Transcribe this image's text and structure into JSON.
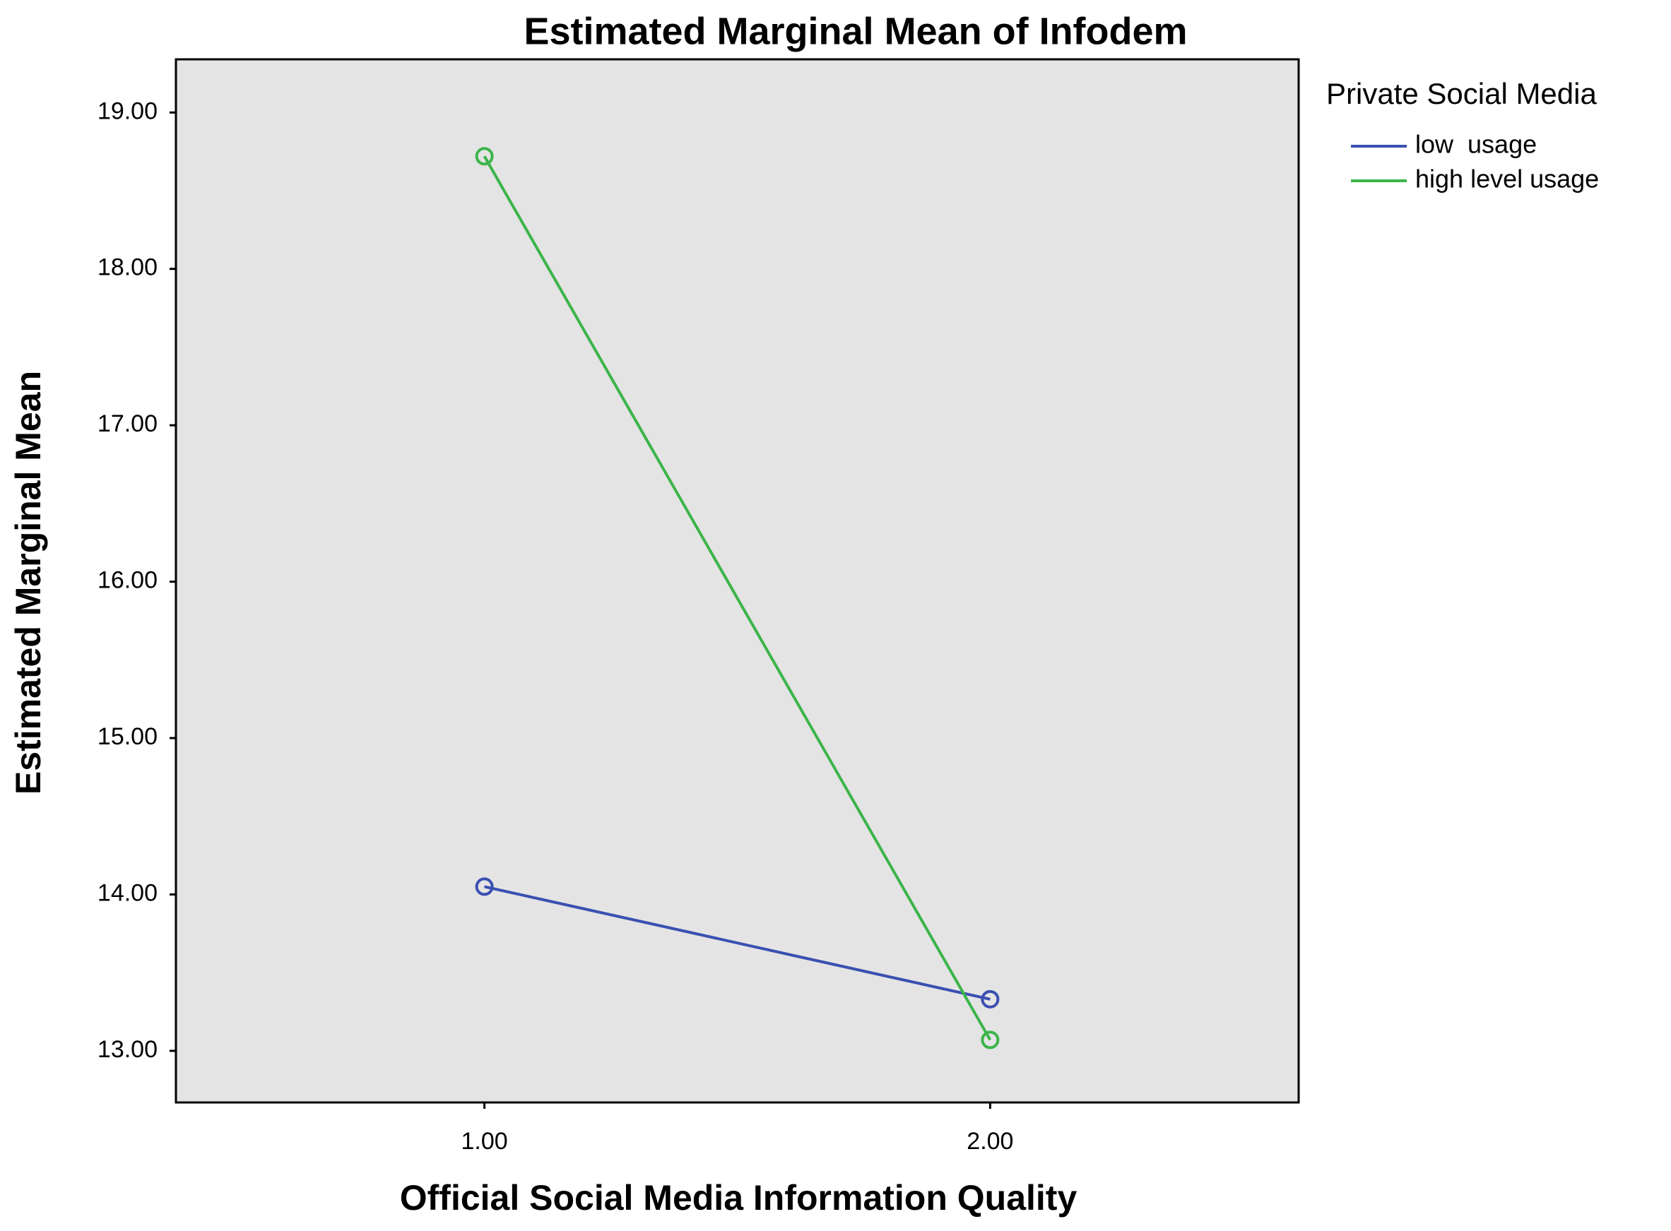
{
  "chart_data": {
    "type": "line",
    "title": "Estimated Marginal Mean of Infodem",
    "x_label": "Official Social Media Information Quality",
    "y_label": "Estimated Marginal Mean",
    "legend_title": "Private Social Media",
    "x": [
      1,
      2
    ],
    "xlim": [
      0.39,
      2.61
    ],
    "xticks": [
      {
        "value": 1,
        "label": "1.00"
      },
      {
        "value": 2,
        "label": "2.00"
      }
    ],
    "ylim": [
      12.67,
      19.34
    ],
    "yticks": [
      {
        "value": 13,
        "label": "13.00"
      },
      {
        "value": 14,
        "label": "14.00"
      },
      {
        "value": 15,
        "label": "15.00"
      },
      {
        "value": 16,
        "label": "16.00"
      },
      {
        "value": 17,
        "label": "17.00"
      },
      {
        "value": 18,
        "label": "18.00"
      },
      {
        "value": 19,
        "label": "19.00"
      }
    ],
    "series": [
      {
        "name": "low  usage",
        "color": "#3a4fb0",
        "values": [
          14.05,
          13.33
        ]
      },
      {
        "name": "high level usage",
        "color": "#3cb44a",
        "values": [
          18.72,
          13.07
        ]
      }
    ],
    "background": "#e4e4e4"
  }
}
